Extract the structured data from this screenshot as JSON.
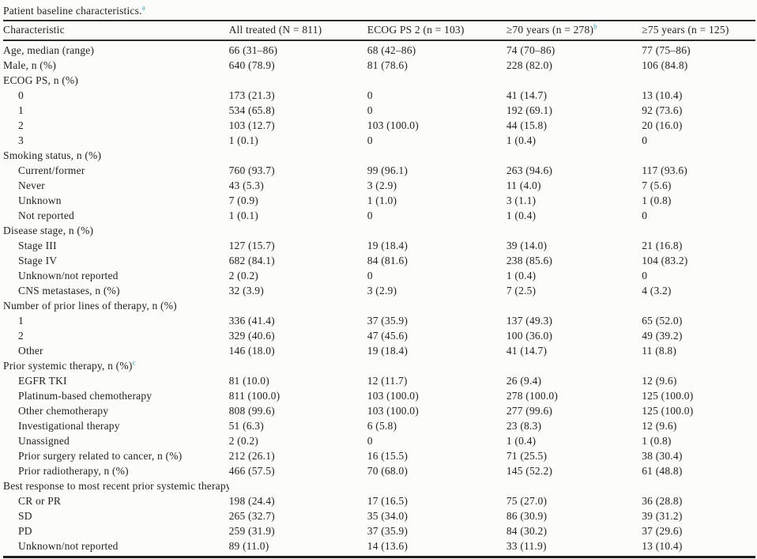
{
  "title": {
    "text": "Patient baseline characteristics.",
    "sup": "a"
  },
  "colors": {
    "footnote_marker": "#3d9fad",
    "text": "#232323"
  },
  "table": {
    "columns": [
      {
        "label": "Characteristic",
        "sup": ""
      },
      {
        "label": "All treated (N = 811)",
        "sup": ""
      },
      {
        "label": "ECOG PS 2 (n = 103)",
        "sup": ""
      },
      {
        "label": "≥70 years (n = 278)",
        "sup": "b"
      },
      {
        "label": "≥75 years (n = 125)",
        "sup": ""
      }
    ],
    "rows": [
      {
        "label": "Age, median (range)",
        "sup": "",
        "indent": 0,
        "values": [
          "66 (31–86)",
          "68 (42–86)",
          "74 (70–86)",
          "77 (75–86)"
        ]
      },
      {
        "label": "Male, n (%)",
        "sup": "",
        "indent": 0,
        "values": [
          "640 (78.9)",
          "81 (78.6)",
          "228 (82.0)",
          "106 (84.8)"
        ]
      },
      {
        "label": "ECOG PS, n (%)",
        "sup": "",
        "indent": 0,
        "values": [
          "",
          "",
          "",
          ""
        ]
      },
      {
        "label": "0",
        "sup": "",
        "indent": 1,
        "values": [
          "173 (21.3)",
          "0",
          "41 (14.7)",
          "13 (10.4)"
        ]
      },
      {
        "label": "1",
        "sup": "",
        "indent": 1,
        "values": [
          "534 (65.8)",
          "0",
          "192 (69.1)",
          "92 (73.6)"
        ]
      },
      {
        "label": "2",
        "sup": "",
        "indent": 1,
        "values": [
          "103 (12.7)",
          "103 (100.0)",
          "44 (15.8)",
          "20 (16.0)"
        ]
      },
      {
        "label": "3",
        "sup": "",
        "indent": 1,
        "values": [
          "1 (0.1)",
          "0",
          "1 (0.4)",
          "0"
        ]
      },
      {
        "label": "Smoking status, n (%)",
        "sup": "",
        "indent": 0,
        "values": [
          "",
          "",
          "",
          ""
        ]
      },
      {
        "label": "Current/former",
        "sup": "",
        "indent": 1,
        "values": [
          "760 (93.7)",
          "99 (96.1)",
          "263 (94.6)",
          "117 (93.6)"
        ]
      },
      {
        "label": "Never",
        "sup": "",
        "indent": 1,
        "values": [
          "43 (5.3)",
          "3 (2.9)",
          "11 (4.0)",
          "7 (5.6)"
        ]
      },
      {
        "label": "Unknown",
        "sup": "",
        "indent": 1,
        "values": [
          "7 (0.9)",
          "1 (1.0)",
          "3 (1.1)",
          "1 (0.8)"
        ]
      },
      {
        "label": "Not reported",
        "sup": "",
        "indent": 1,
        "values": [
          "1 (0.1)",
          "0",
          "1 (0.4)",
          "0"
        ]
      },
      {
        "label": "Disease stage, n (%)",
        "sup": "",
        "indent": 0,
        "values": [
          "",
          "",
          "",
          ""
        ]
      },
      {
        "label": "Stage III",
        "sup": "",
        "indent": 1,
        "values": [
          "127 (15.7)",
          "19 (18.4)",
          "39 (14.0)",
          "21 (16.8)"
        ]
      },
      {
        "label": "Stage IV",
        "sup": "",
        "indent": 1,
        "values": [
          "682 (84.1)",
          "84 (81.6)",
          "238 (85.6)",
          "104 (83.2)"
        ]
      },
      {
        "label": "Unknown/not reported",
        "sup": "",
        "indent": 1,
        "values": [
          "2 (0.2)",
          "0",
          "1 (0.4)",
          "0"
        ]
      },
      {
        "label": "CNS metastases, n (%)",
        "sup": "",
        "indent": 1,
        "values": [
          "32 (3.9)",
          "3 (2.9)",
          "7 (2.5)",
          "4 (3.2)"
        ]
      },
      {
        "label": "Number of prior lines of therapy, n (%)",
        "sup": "",
        "indent": 0,
        "values": [
          "",
          "",
          "",
          ""
        ]
      },
      {
        "label": "1",
        "sup": "",
        "indent": 1,
        "values": [
          "336 (41.4)",
          "37 (35.9)",
          "137 (49.3)",
          "65 (52.0)"
        ]
      },
      {
        "label": "2",
        "sup": "",
        "indent": 1,
        "values": [
          "329 (40.6)",
          "47 (45.6)",
          "100 (36.0)",
          "49 (39.2)"
        ]
      },
      {
        "label": "Other",
        "sup": "",
        "indent": 1,
        "values": [
          "146 (18.0)",
          "19 (18.4)",
          "41 (14.7)",
          "11 (8.8)"
        ]
      },
      {
        "label": "Prior systemic therapy, n (%)",
        "sup": "c",
        "indent": 0,
        "values": [
          "",
          "",
          "",
          ""
        ]
      },
      {
        "label": "EGFR TKI",
        "sup": "",
        "indent": 1,
        "values": [
          "81 (10.0)",
          "12 (11.7)",
          "26 (9.4)",
          "12 (9.6)"
        ]
      },
      {
        "label": "Platinum-based chemotherapy",
        "sup": "",
        "indent": 1,
        "values": [
          "811 (100.0)",
          "103 (100.0)",
          "278 (100.0)",
          "125 (100.0)"
        ]
      },
      {
        "label": "Other chemotherapy",
        "sup": "",
        "indent": 1,
        "values": [
          "808 (99.6)",
          "103 (100.0)",
          "277 (99.6)",
          "125 (100.0)"
        ]
      },
      {
        "label": "Investigational therapy",
        "sup": "",
        "indent": 1,
        "values": [
          "51 (6.3)",
          "6 (5.8)",
          "23 (8.3)",
          "12 (9.6)"
        ]
      },
      {
        "label": "Unassigned",
        "sup": "",
        "indent": 1,
        "values": [
          "2 (0.2)",
          "0",
          "1 (0.4)",
          "1 (0.8)"
        ]
      },
      {
        "label": "Prior surgery related to cancer, n (%)",
        "sup": "",
        "indent": 1,
        "values": [
          "212 (26.1)",
          "16 (15.5)",
          "71 (25.5)",
          "38 (30.4)"
        ]
      },
      {
        "label": "Prior radiotherapy, n (%)",
        "sup": "",
        "indent": 1,
        "values": [
          "466 (57.5)",
          "70 (68.0)",
          "145 (52.2)",
          "61 (48.8)"
        ]
      },
      {
        "label": "Best response to most recent prior systemic therapy, n (%)",
        "sup": "",
        "indent": 0,
        "values": [
          "",
          "",
          "",
          ""
        ]
      },
      {
        "label": "CR or PR",
        "sup": "",
        "indent": 1,
        "values": [
          "198 (24.4)",
          "17 (16.5)",
          "75 (27.0)",
          "36 (28.8)"
        ]
      },
      {
        "label": "SD",
        "sup": "",
        "indent": 1,
        "values": [
          "265 (32.7)",
          "35 (34.0)",
          "86 (30.9)",
          "39 (31.2)"
        ]
      },
      {
        "label": "PD",
        "sup": "",
        "indent": 1,
        "values": [
          "259 (31.9)",
          "37 (35.9)",
          "84 (30.2)",
          "37 (29.6)"
        ]
      },
      {
        "label": "Unknown/not reported",
        "sup": "",
        "indent": 1,
        "values": [
          "89 (11.0)",
          "14 (13.6)",
          "33 (11.9)",
          "13 (10.4)"
        ]
      }
    ]
  }
}
